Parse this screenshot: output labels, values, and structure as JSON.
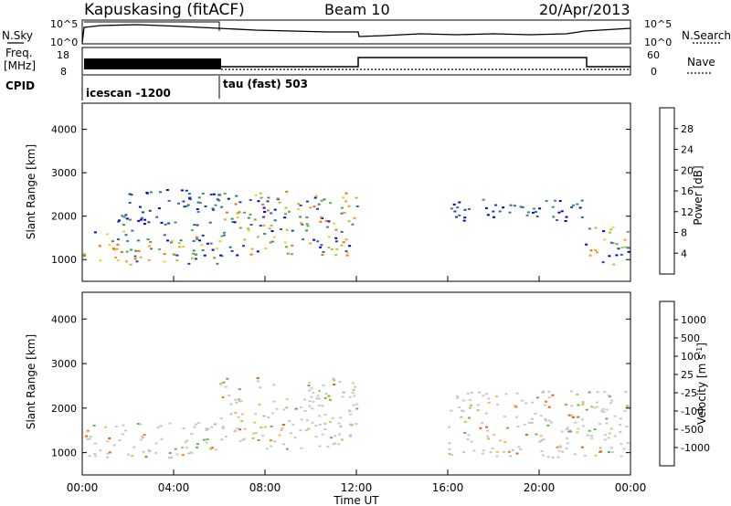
{
  "header": {
    "station": "Kapuskasing (fitACF)",
    "beam": "Beam 10",
    "date": "20/Apr/2013"
  },
  "noise_panel": {
    "left_label": "N.Sky",
    "right_label": "N.Search",
    "left_ticks": [
      "10^5",
      "10^0"
    ],
    "right_ticks": [
      "10^5",
      "10^0"
    ]
  },
  "freq_panel": {
    "left_label_line1": "Freq.",
    "left_label_line2": "[MHz]",
    "right_label": "Nave",
    "left_ticks": [
      "18",
      "8"
    ],
    "right_ticks": [
      "60",
      "0"
    ]
  },
  "cpid": {
    "label": "CPID",
    "segments": [
      {
        "name": "icescan -1200",
        "start_hour": 0.0,
        "end_hour": 6.0
      },
      {
        "name": "tau (fast) 503",
        "start_hour": 6.0,
        "end_hour": 24.0
      }
    ]
  },
  "chart_data": [
    {
      "type": "heatmap",
      "name": "power",
      "ylabel": "Slant Range [km]",
      "y_ticks": [
        1000,
        2000,
        3000,
        4000
      ],
      "ylim": [
        500,
        4600
      ],
      "x_ticks": [
        "00:00",
        "04:00",
        "08:00",
        "12:00",
        "16:00",
        "20:00",
        "00:00"
      ],
      "xlim_hours": [
        0,
        24
      ],
      "colorbar_label": "Power [dB]",
      "colorbar_ticks": [
        28,
        24,
        20,
        16,
        12,
        8,
        4
      ],
      "colorbar_colors": [
        "#0000e0",
        "#1f3fb0",
        "#2e6aa0",
        "#3d8c6c",
        "#5fae4c",
        "#a8c832",
        "#f0d020",
        "#f5a020",
        "#f07010",
        "#e03a10",
        "#d00000"
      ],
      "scatter_regions": [
        {
          "from_hour": 0.0,
          "to_hour": 6.0,
          "range_min": 900,
          "range_max": 1700,
          "level": "12-28 dB"
        },
        {
          "from_hour": 1.5,
          "to_hour": 6.0,
          "range_min": 1800,
          "range_max": 2700,
          "level": "4-12 dB"
        },
        {
          "from_hour": 6.0,
          "to_hour": 12.0,
          "range_min": 1100,
          "range_max": 2600,
          "level": "8-24 dB"
        },
        {
          "from_hour": 16.0,
          "to_hour": 22.0,
          "range_min": 1900,
          "range_max": 2400,
          "level": "4-12 dB"
        },
        {
          "from_hour": 22.0,
          "to_hour": 24.0,
          "range_min": 900,
          "range_max": 1800,
          "level": "8-24 dB"
        }
      ]
    },
    {
      "type": "heatmap",
      "name": "velocity",
      "ylabel": "Slant Range [km]",
      "y_ticks": [
        1000,
        2000,
        3000,
        4000
      ],
      "ylim": [
        500,
        4600
      ],
      "x_ticks": [
        "00:00",
        "04:00",
        "08:00",
        "12:00",
        "16:00",
        "20:00",
        "00:00"
      ],
      "xlim_hours": [
        0,
        24
      ],
      "xlabel": "Time UT",
      "colorbar_label": "Velocity [m s^-1]",
      "colorbar_ticks": [
        1000,
        500,
        100,
        25,
        -25,
        -100,
        -500,
        -1000
      ],
      "colorbar_colors": [
        "#2040c0",
        "#2e6cb0",
        "#3c8a60",
        "#5fb84a",
        "#a0d060",
        "#c8c8c8",
        "#f5c040",
        "#f08020",
        "#f05a10",
        "#e02010",
        "#d00000"
      ],
      "scatter_regions": [
        {
          "from_hour": 0.0,
          "to_hour": 6.0,
          "range_min": 900,
          "range_max": 1700,
          "level": "mostly near zero, some green"
        },
        {
          "from_hour": 6.0,
          "to_hour": 12.0,
          "range_min": 1100,
          "range_max": 2700,
          "level": "near zero with orange patches (-100 to -500)"
        },
        {
          "from_hour": 16.0,
          "to_hour": 24.0,
          "range_min": 900,
          "range_max": 2400,
          "level": "near zero (grey)"
        }
      ]
    }
  ]
}
